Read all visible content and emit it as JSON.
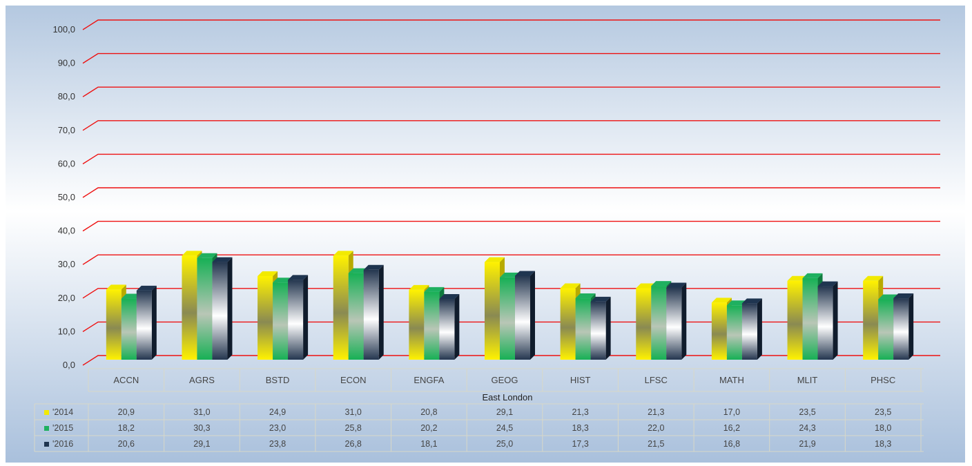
{
  "chart_data": {
    "type": "bar",
    "title": "",
    "xlabel": "East London",
    "ylabel": "",
    "ylim": [
      0,
      100
    ],
    "yticks": [
      0,
      10,
      20,
      30,
      40,
      50,
      60,
      70,
      80,
      90,
      100
    ],
    "ytick_labels": [
      "0,0",
      "10,0",
      "20,0",
      "30,0",
      "40,0",
      "50,0",
      "60,0",
      "70,0",
      "80,0",
      "90,0",
      "100,0"
    ],
    "grid": true,
    "legend": "data-table-left",
    "categories": [
      "ACCN",
      "AGRS",
      "BSTD",
      "ECON",
      "ENGFA",
      "GEOG",
      "HIST",
      "LFSC",
      "MATH",
      "MLIT",
      "PHSC"
    ],
    "series": [
      {
        "name": "2014",
        "values": [
          20.9,
          31.0,
          24.9,
          31.0,
          20.8,
          29.1,
          21.3,
          21.3,
          17.0,
          23.5,
          23.5
        ],
        "labels": [
          "20,9",
          "31,0",
          "24,9",
          "31,0",
          "20,8",
          "29,1",
          "21,3",
          "21,3",
          "17,0",
          "23,5",
          "23,5"
        ]
      },
      {
        "name": "2015",
        "values": [
          18.2,
          30.3,
          23.0,
          25.8,
          20.2,
          24.5,
          18.3,
          22.0,
          16.2,
          24.3,
          18.0
        ],
        "labels": [
          "18,2",
          "30,3",
          "23,0",
          "25,8",
          "20,2",
          "24,5",
          "18,3",
          "22,0",
          "16,2",
          "24,3",
          "18,0"
        ]
      },
      {
        "name": "2016",
        "values": [
          20.6,
          29.1,
          23.8,
          26.8,
          18.1,
          25.0,
          17.3,
          21.5,
          16.8,
          21.9,
          18.3
        ],
        "labels": [
          "20,6",
          "29,1",
          "23,8",
          "26,8",
          "18,1",
          "25,0",
          "17,3",
          "21,5",
          "16,8",
          "21,9",
          "18,3"
        ]
      }
    ],
    "colors": {
      "2014": "#f2ea00",
      "2015": "#1fb060",
      "2016": "#1f3550",
      "gridline": "#ee1111",
      "background_top": "#b4c8e0",
      "background_mid": "#ffffff",
      "background_bottom": "#a9c0dc"
    }
  }
}
